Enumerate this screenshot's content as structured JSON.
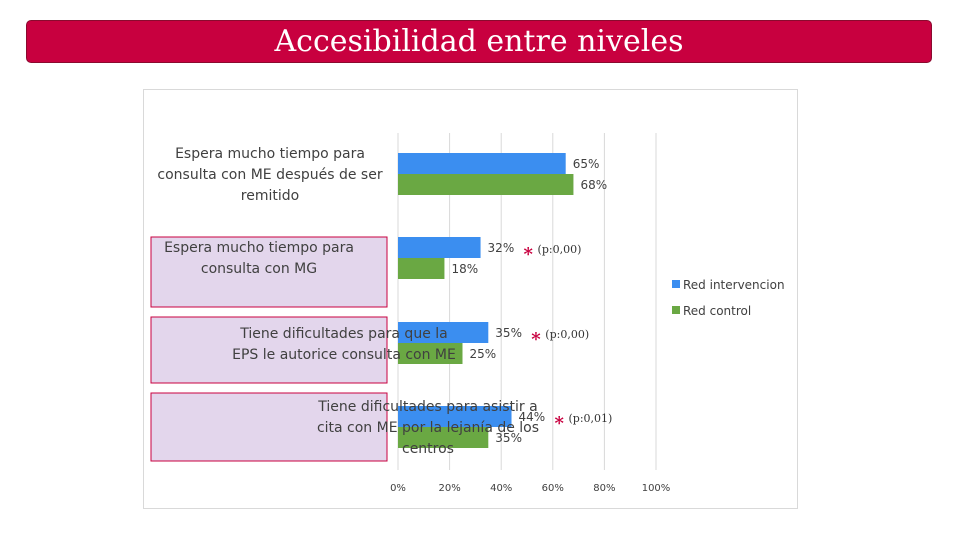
{
  "slide": {
    "title": "Accesibilidad entre niveles"
  },
  "colors": {
    "title_bg": "#c8003f",
    "series_a": "#3b8ef0",
    "series_b": "#6aa843",
    "highlight_fill": "#e3d6ec",
    "highlight_border": "#c8003f",
    "star": "#c8003f"
  },
  "chart_data": {
    "type": "bar",
    "orientation": "horizontal",
    "categories": [
      [
        "Espera mucho tiempo para",
        "consulta con ME después de ser",
        "remitido"
      ],
      [
        "Espera mucho tiempo para",
        "consulta con MG"
      ],
      [
        "Tiene dificultades para que la",
        "EPS le autorice consulta con ME"
      ],
      [
        "Tiene dificultades para asistir a",
        "cita con ME por la lejanía de los",
        "centros"
      ]
    ],
    "highlighted": [
      false,
      true,
      true,
      true
    ],
    "series": [
      {
        "name": "Red intervencion",
        "values": [
          65,
          32,
          35,
          44
        ],
        "labels": [
          "65%",
          "32%",
          "35%",
          "44%"
        ]
      },
      {
        "name": "Red control",
        "values": [
          68,
          18,
          25,
          35
        ],
        "labels": [
          "68%",
          "18%",
          "25%",
          "35%"
        ]
      }
    ],
    "significance": [
      null,
      "(p:0,00)",
      "(p:0,00)",
      "(p:0,01)"
    ],
    "significance_marker": "*",
    "xlim": [
      0,
      100
    ],
    "xticks": [
      "0%",
      "20%",
      "40%",
      "60%",
      "80%",
      "100%"
    ],
    "grid": true,
    "legend_position": "right"
  }
}
